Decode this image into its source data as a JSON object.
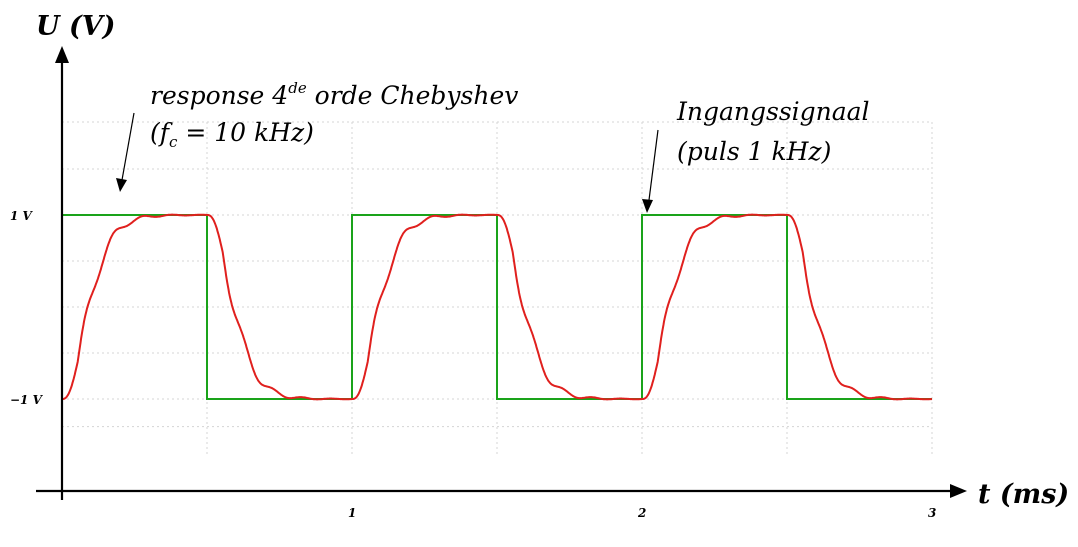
{
  "chart_data": {
    "type": "line",
    "xlim": [
      0,
      3
    ],
    "ylim": [
      -1.5,
      2.3
    ],
    "grid": true,
    "x_title": {
      "main": "t",
      "unit": "(ms)"
    },
    "y_title": {
      "main": "U",
      "unit": "(V)"
    },
    "x_ticks": [
      {
        "value": 1,
        "label": "1"
      },
      {
        "value": 2,
        "label": "2"
      },
      {
        "value": 3,
        "label": "3"
      }
    ],
    "y_ticks": [
      {
        "value": 1,
        "label": "1 V"
      },
      {
        "value": -1,
        "label": "−1 V"
      }
    ],
    "annotations": {
      "response": {
        "line1_main": "response 4",
        "line1_sup": "de",
        "line1_tail": " orde Chebyshev",
        "line2_open": "(f",
        "line2_sub": "c",
        "line2_tail": " = 10 kHz)"
      },
      "input": {
        "line1": "Ingangssignaal",
        "line2": "(puls 1 kHz)"
      }
    },
    "series": [
      {
        "id": "input",
        "color": "#1aa31a",
        "kind": "square",
        "period_ms": 1,
        "amplitude_v": 1,
        "transitions": [
          {
            "t": 0,
            "v": -1
          },
          {
            "t": 0.0,
            "v": 1
          },
          {
            "t": 0.5,
            "v": -1
          },
          {
            "t": 1.0,
            "v": 1
          },
          {
            "t": 1.5,
            "v": -1
          },
          {
            "t": 2.0,
            "v": 1
          },
          {
            "t": 2.5,
            "v": -1
          },
          {
            "t": 3.0,
            "v": -1
          }
        ]
      },
      {
        "id": "response",
        "color": "#e0201e",
        "kind": "filtered-step",
        "order": 4,
        "cutoff_khz": 10,
        "steps": [
          {
            "t": 0.0,
            "from": -1,
            "to": 1
          },
          {
            "t": 0.5,
            "from": 1,
            "to": -1
          },
          {
            "t": 1.0,
            "from": -1,
            "to": 1
          },
          {
            "t": 1.5,
            "from": 1,
            "to": -1
          },
          {
            "t": 2.0,
            "from": -1,
            "to": 1
          },
          {
            "t": 2.5,
            "from": 1,
            "to": -1
          }
        ],
        "overshoot_peak_v": 1.21,
        "undershoot_peak_v": -1.21
      }
    ]
  }
}
